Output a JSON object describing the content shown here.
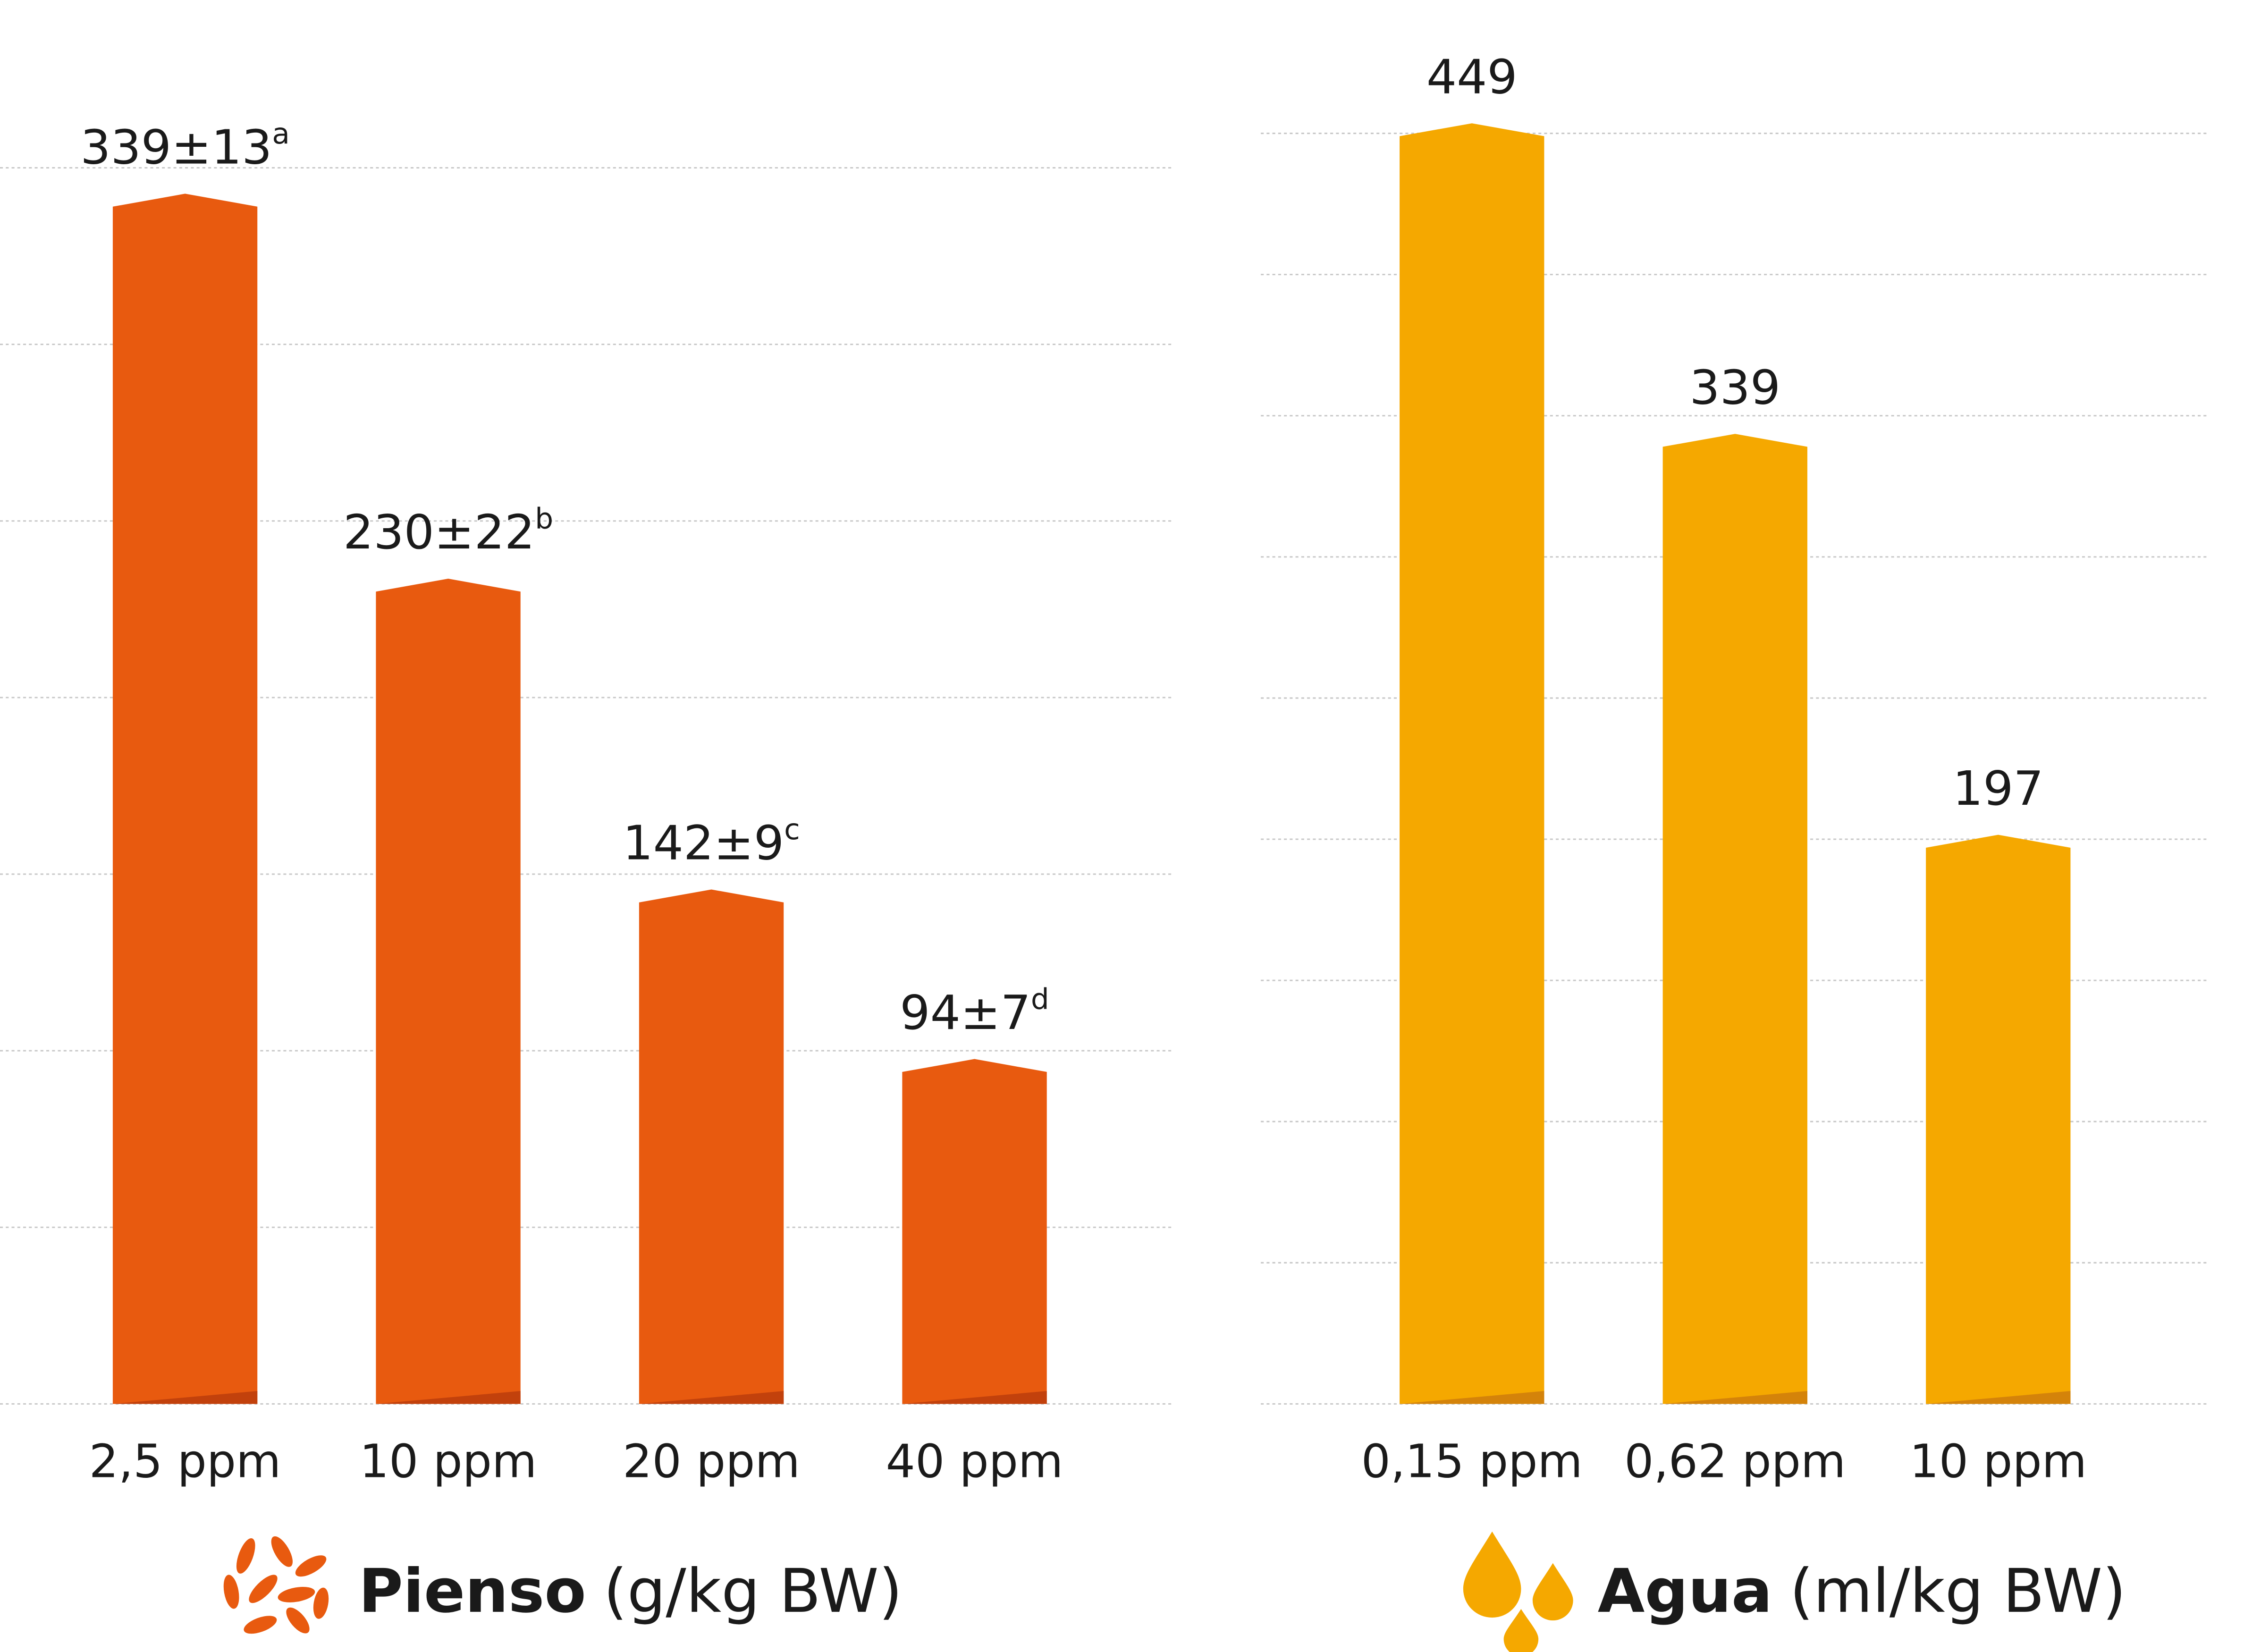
{
  "chart_data": [
    {
      "type": "bar",
      "categories": [
        "2,5 ppm",
        "10 ppm",
        "20 ppm",
        "40 ppm"
      ],
      "values": [
        339,
        230,
        142,
        94
      ],
      "value_labels": [
        "339±13",
        "230±22",
        "142±9",
        "94±7"
      ],
      "significance": [
        "a",
        "b",
        "c",
        "d"
      ],
      "color": "#e85a0f",
      "ylim": [
        0,
        350
      ],
      "yticks": [
        0,
        50,
        100,
        150,
        200,
        250,
        300,
        350
      ],
      "grid": true,
      "xlabel": "Pienso",
      "xlabel_unit": "(g/kg BW)"
    },
    {
      "type": "bar",
      "categories": [
        "0,15 ppm",
        "0,62 ppm",
        "10 ppm"
      ],
      "values": [
        449,
        339,
        197
      ],
      "color": "#f5a800",
      "ylim": [
        0,
        450
      ],
      "yticks": [
        0,
        50,
        100,
        150,
        200,
        250,
        300,
        350,
        400,
        450
      ],
      "grid": true,
      "xlabel": "Agua",
      "xlabel_unit": "(ml/kg BW)"
    }
  ]
}
